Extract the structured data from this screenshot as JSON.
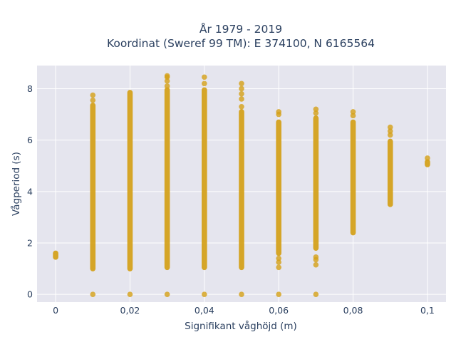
{
  "chart_data": {
    "type": "scatter",
    "title": "År 1979 - 2019",
    "subtitle": "Koordinat (Sweref 99 TM): E 374100, N 6165564",
    "xlabel": "Signifikant våghöjd (m)",
    "ylabel": "Vågperiod (s)",
    "xlim": [
      -0.005,
      0.105
    ],
    "ylim": [
      -0.3,
      8.9
    ],
    "x_ticks": [
      0,
      0.02,
      0.04,
      0.06,
      0.08,
      0.1
    ],
    "x_tick_labels": [
      "0",
      "0,02",
      "0,04",
      "0,06",
      "0,08",
      "0,1"
    ],
    "y_ticks": [
      0,
      2,
      4,
      6,
      8
    ],
    "y_tick_labels": [
      "0",
      "2",
      "4",
      "6",
      "8"
    ],
    "grid": true,
    "background": "#e5e5ee",
    "marker_color": "#d4a017",
    "series": [
      {
        "points": [
          {
            "x": 0,
            "y_min": 1.45,
            "y_max": 1.6,
            "extra": []
          },
          {
            "x": 0.01,
            "y_min": 1.0,
            "y_max": 7.35,
            "extra": [
              0,
              7.55,
              7.75
            ]
          },
          {
            "x": 0.02,
            "y_min": 1.0,
            "y_max": 7.85,
            "extra": [
              0
            ]
          },
          {
            "x": 0.03,
            "y_min": 1.05,
            "y_max": 7.95,
            "extra": [
              0,
              8.1,
              8.3,
              8.45,
              8.5
            ]
          },
          {
            "x": 0.04,
            "y_min": 1.05,
            "y_max": 7.95,
            "extra": [
              0,
              8.2,
              8.45
            ]
          },
          {
            "x": 0.05,
            "y_min": 1.05,
            "y_max": 7.1,
            "extra": [
              0,
              7.3,
              7.6,
              7.8,
              8.0,
              8.2
            ]
          },
          {
            "x": 0.06,
            "y_min": 1.6,
            "y_max": 6.7,
            "extra": [
              0,
              1.05,
              1.25,
              1.4,
              7.0,
              7.1
            ]
          },
          {
            "x": 0.07,
            "y_min": 1.8,
            "y_max": 6.85,
            "extra": [
              0,
              1.15,
              1.35,
              1.45,
              7.05,
              7.2
            ]
          },
          {
            "x": 0.08,
            "y_min": 2.4,
            "y_max": 6.7,
            "extra": [
              6.95,
              7.1
            ]
          },
          {
            "x": 0.09,
            "y_min": 3.5,
            "y_max": 5.95,
            "extra": [
              6.2,
              6.35,
              6.5
            ]
          },
          {
            "x": 0.1,
            "y_min": 5.05,
            "y_max": 5.15,
            "extra": [
              5.3
            ]
          }
        ]
      }
    ]
  }
}
